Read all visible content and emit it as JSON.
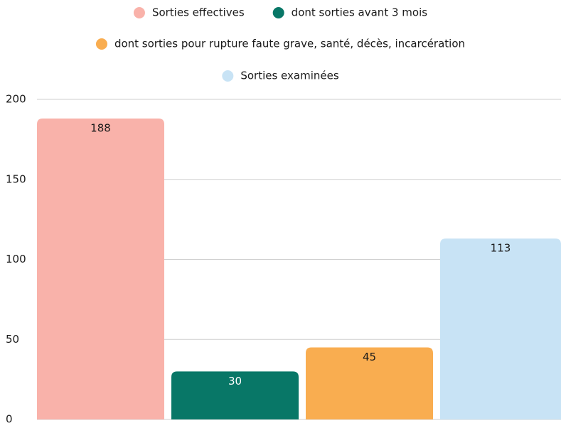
{
  "chart_data": {
    "type": "bar",
    "series": [
      {
        "name": "Sorties effectives",
        "color": "#f9b2aa",
        "values": [
          188
        ]
      },
      {
        "name": "dont sorties avant 3 mois",
        "color": "#087767",
        "values": [
          30
        ]
      },
      {
        "name": "dont sorties pour rupture faute grave, santé, décès, incarcération",
        "color": "#f9ad50",
        "values": [
          45
        ]
      },
      {
        "name": "Sorties examinées",
        "color": "#c8e3f5",
        "values": [
          113
        ]
      }
    ],
    "ylim": [
      0,
      200
    ],
    "yticks": [
      0,
      50,
      100,
      150,
      200
    ],
    "grid": true,
    "legend": "top"
  }
}
